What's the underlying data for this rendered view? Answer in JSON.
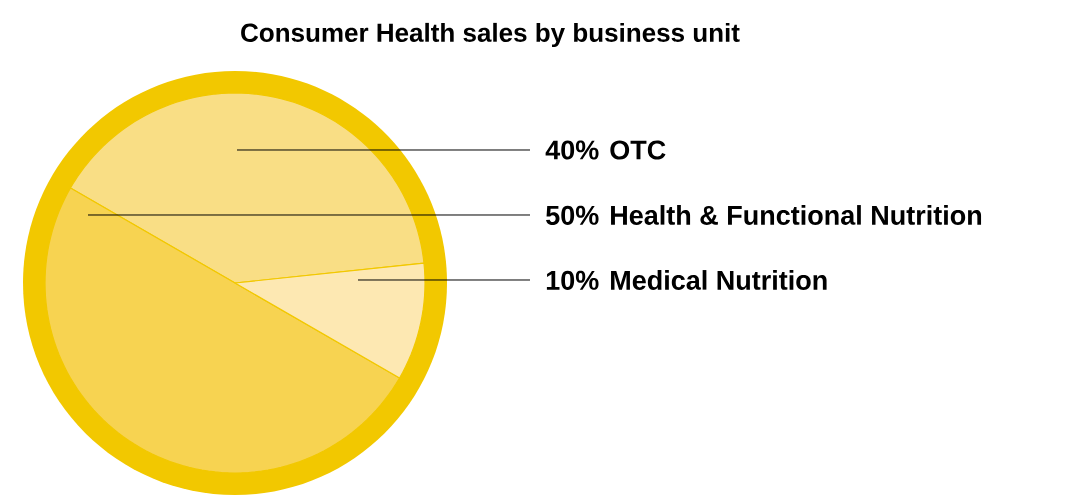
{
  "chart_data": {
    "type": "pie",
    "title": "Consumer Health sales by business unit",
    "categories": [
      "OTC",
      "Health & Functional Nutrition",
      "Medical Nutrition"
    ],
    "values": [
      40,
      50,
      10
    ],
    "value_labels": [
      "40%",
      "50%",
      "10%"
    ],
    "colors": [
      "#f9de85",
      "#f7d351",
      "#fde8b2"
    ]
  }
}
